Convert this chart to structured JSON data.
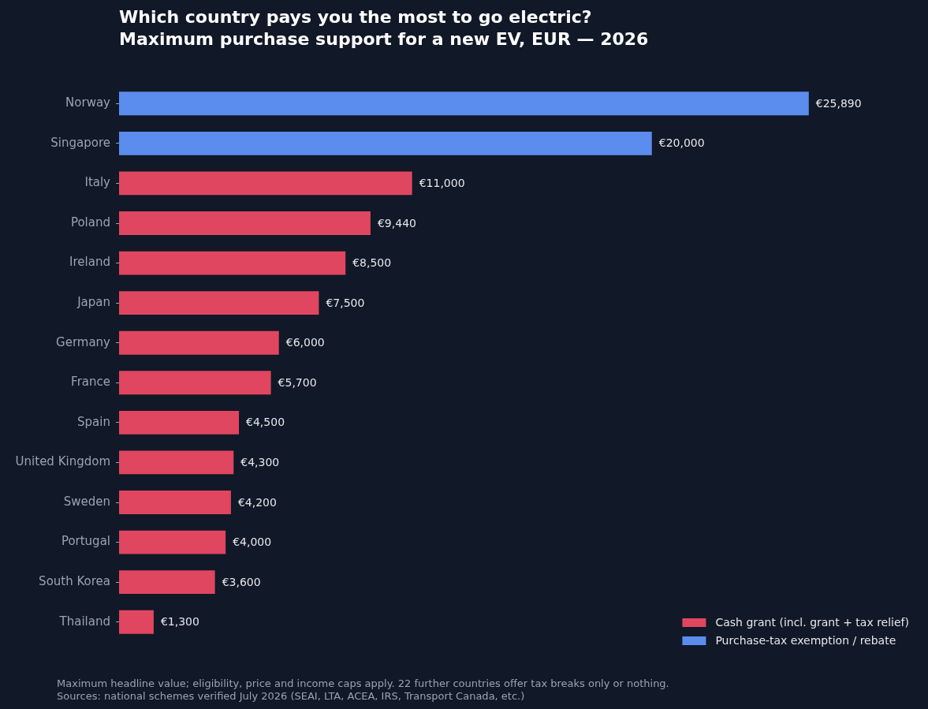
{
  "chart_data": {
    "type": "bar",
    "orientation": "horizontal",
    "title": "Which country pays you the most to go electric?",
    "subtitle": "Maximum purchase support for a new EV, EUR — 2026",
    "categories": [
      "Norway",
      "Singapore",
      "Italy",
      "Poland",
      "Ireland",
      "Japan",
      "Germany",
      "France",
      "Spain",
      "United Kingdom",
      "Sweden",
      "Portugal",
      "South Korea",
      "Thailand"
    ],
    "series": [
      {
        "name": "Cash grant (incl. grant + tax relief)",
        "color": "#e0465f",
        "values": [
          null,
          null,
          11000,
          9440,
          8500,
          7500,
          6000,
          5700,
          4500,
          4300,
          4200,
          4000,
          3600,
          1300
        ],
        "value_labels": [
          null,
          null,
          "€11,000",
          "€9,440",
          "€8,500",
          "€7,500",
          "€6,000",
          "€5,700",
          "€4,500",
          "€4,300",
          "€4,200",
          "€4,000",
          "€3,600",
          "€1,300"
        ]
      },
      {
        "name": "Purchase-tax exemption / rebate",
        "color": "#5b8def",
        "values": [
          25890,
          20000,
          null,
          null,
          null,
          null,
          null,
          null,
          null,
          null,
          null,
          null,
          null,
          null
        ],
        "value_labels": [
          "€25,890",
          "€20,000",
          null,
          null,
          null,
          null,
          null,
          null,
          null,
          null,
          null,
          null,
          null,
          null
        ]
      }
    ],
    "legend": "bottom right",
    "tick_labels": "y",
    "annotations": [
      "Maximum headline value; eligibility, price and income caps apply. 22 further countries offer tax breaks only or nothing.",
      "Sources: national schemes verified July 2026 (SEAI, LTA, ACEA, IRS, Transport Canada, etc.)"
    ]
  }
}
